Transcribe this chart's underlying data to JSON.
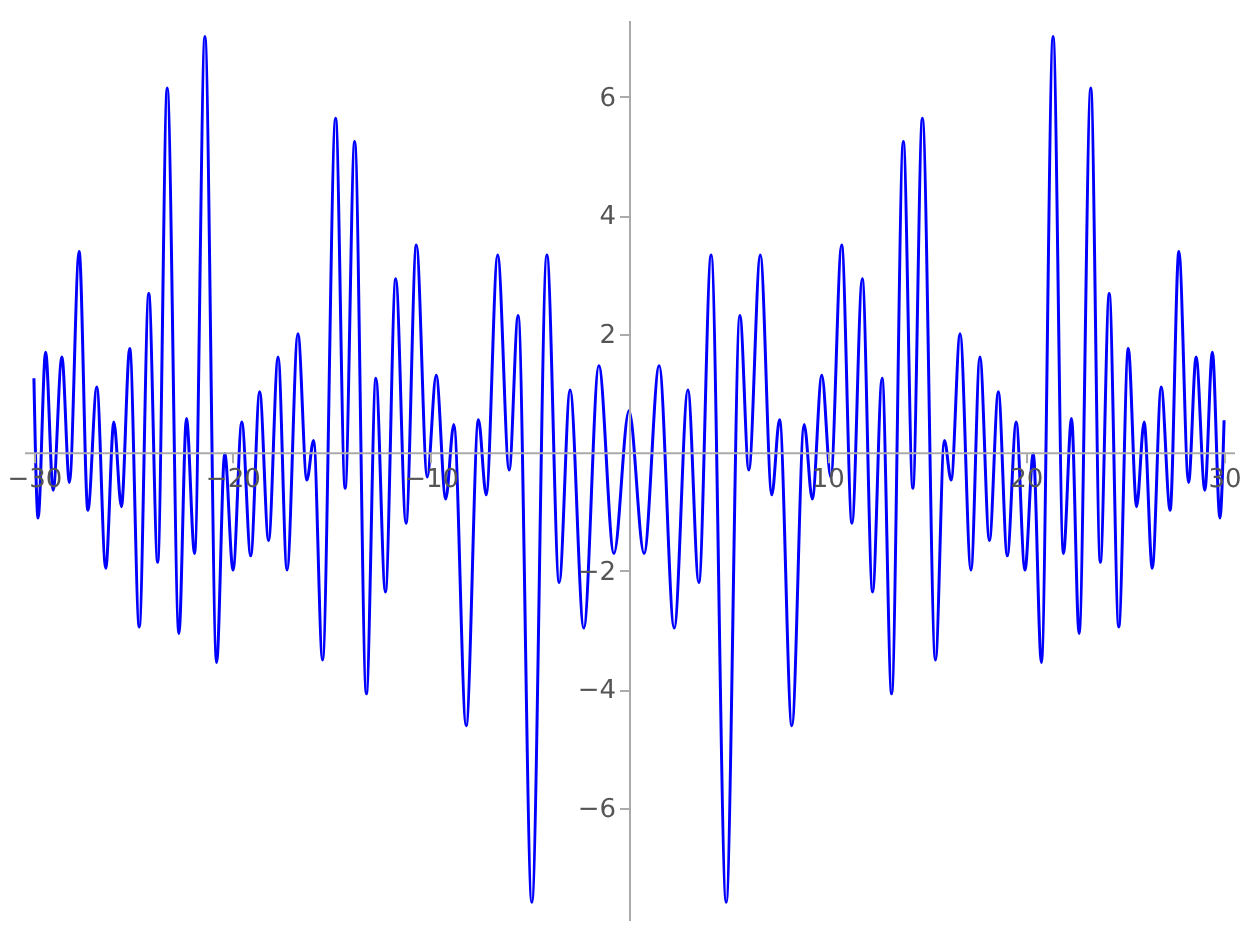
{
  "chart_data": {
    "type": "line",
    "x": [
      -30,
      -29.79,
      -29.41,
      -29.03,
      -28.59,
      -28.21,
      -27.72,
      -27.28,
      -26.83,
      -26.38,
      -25.97,
      -25.59,
      -25.17,
      -24.69,
      -24.21,
      -23.76,
      -23.28,
      -22.69,
      -22.31,
      -21.9,
      -21.38,
      -20.79,
      -20.38,
      -19.96,
      -19.52,
      -19.07,
      -18.62,
      -18.17,
      -17.69,
      -17.24,
      -16.69,
      -16.24,
      -15.9,
      -15.45,
      -14.79,
      -14.31,
      -13.83,
      -13.24,
      -12.76,
      -12.28,
      -11.76,
      -11.24,
      -10.72,
      -10.17,
      -9.72,
      -9.24,
      -8.83,
      -8.21,
      -7.59,
      -7.2,
      -6.62,
      -6.04,
      -5.59,
      -4.9,
      -4.14,
      -3.52,
      -2.97,
      -2.28,
      -1.52,
      -0.76,
      0,
      0.76,
      1.52,
      2.28,
      2.97,
      3.52,
      4.14,
      4.9,
      5.59,
      6.04,
      6.62,
      7.2,
      7.59,
      8.21,
      8.83,
      9.24,
      9.72,
      10.17,
      10.72,
      11.24,
      11.76,
      12.28,
      12.76,
      13.24,
      13.83,
      14.31,
      14.79,
      15.45,
      15.9,
      16.24,
      16.69,
      17.24,
      17.69,
      18.17,
      18.62,
      19.07,
      19.52,
      19.96,
      20.38,
      20.79,
      21.38,
      21.9,
      22.31,
      22.69,
      23.28,
      23.76,
      24.21,
      24.69,
      25.17,
      25.59,
      25.97,
      26.38,
      26.83,
      27.28,
      27.72,
      28.21,
      28.59,
      29.03,
      29.41,
      29.79,
      30
    ],
    "series": [
      {
        "color": "#0000ff",
        "values": [
          1.25,
          -1.11,
          1.69,
          -0.64,
          1.61,
          -0.51,
          3.39,
          -0.98,
          1.1,
          -1.96,
          0.51,
          -0.92,
          1.75,
          -2.95,
          2.68,
          -1.86,
          6.15,
          -3.06,
          0.57,
          -1.71,
          7.02,
          -3.55,
          -0.02,
          -1.99,
          0.51,
          -1.75,
          1.02,
          -1.49,
          1.61,
          -1.99,
          2.0,
          -0.47,
          0.2,
          -3.51,
          5.64,
          -0.61,
          5.25,
          -4.08,
          1.25,
          -2.36,
          2.93,
          -1.2,
          3.5,
          -0.42,
          1.3,
          -0.79,
          0.47,
          -4.62,
          0.55,
          -0.72,
          3.33,
          -0.3,
          2.31,
          -7.6,
          3.33,
          -2.2,
          1.05,
          -2.97,
          1.46,
          -1.71,
          0.7,
          -1.71,
          1.46,
          -2.97,
          1.05,
          -2.2,
          3.33,
          -7.6,
          2.31,
          -0.3,
          3.33,
          -0.72,
          0.55,
          -4.62,
          0.47,
          -0.79,
          1.3,
          -0.42,
          3.5,
          -1.2,
          2.93,
          -2.36,
          1.25,
          -4.08,
          5.25,
          -0.61,
          5.64,
          -3.51,
          0.2,
          -0.47,
          2.0,
          -1.99,
          1.61,
          -1.49,
          1.02,
          -1.75,
          0.51,
          -1.99,
          -0.02,
          -3.55,
          7.02,
          -1.71,
          0.57,
          -3.06,
          6.15,
          -1.86,
          2.68,
          -2.95,
          1.75,
          -0.92,
          0.51,
          -1.96,
          1.1,
          -0.98,
          3.39,
          -0.51,
          1.61,
          -0.64,
          1.69,
          -1.11,
          0.54
        ]
      }
    ],
    "xlim": [
      -30.5,
      30.5
    ],
    "ylim": [
      -7.9,
      7.3
    ],
    "xticks": [
      -30,
      -20,
      -10,
      10,
      20,
      30
    ],
    "yticks": [
      -6,
      -4,
      -2,
      2,
      4,
      6
    ],
    "grid": false,
    "marker": "none",
    "line_style": "solid"
  }
}
